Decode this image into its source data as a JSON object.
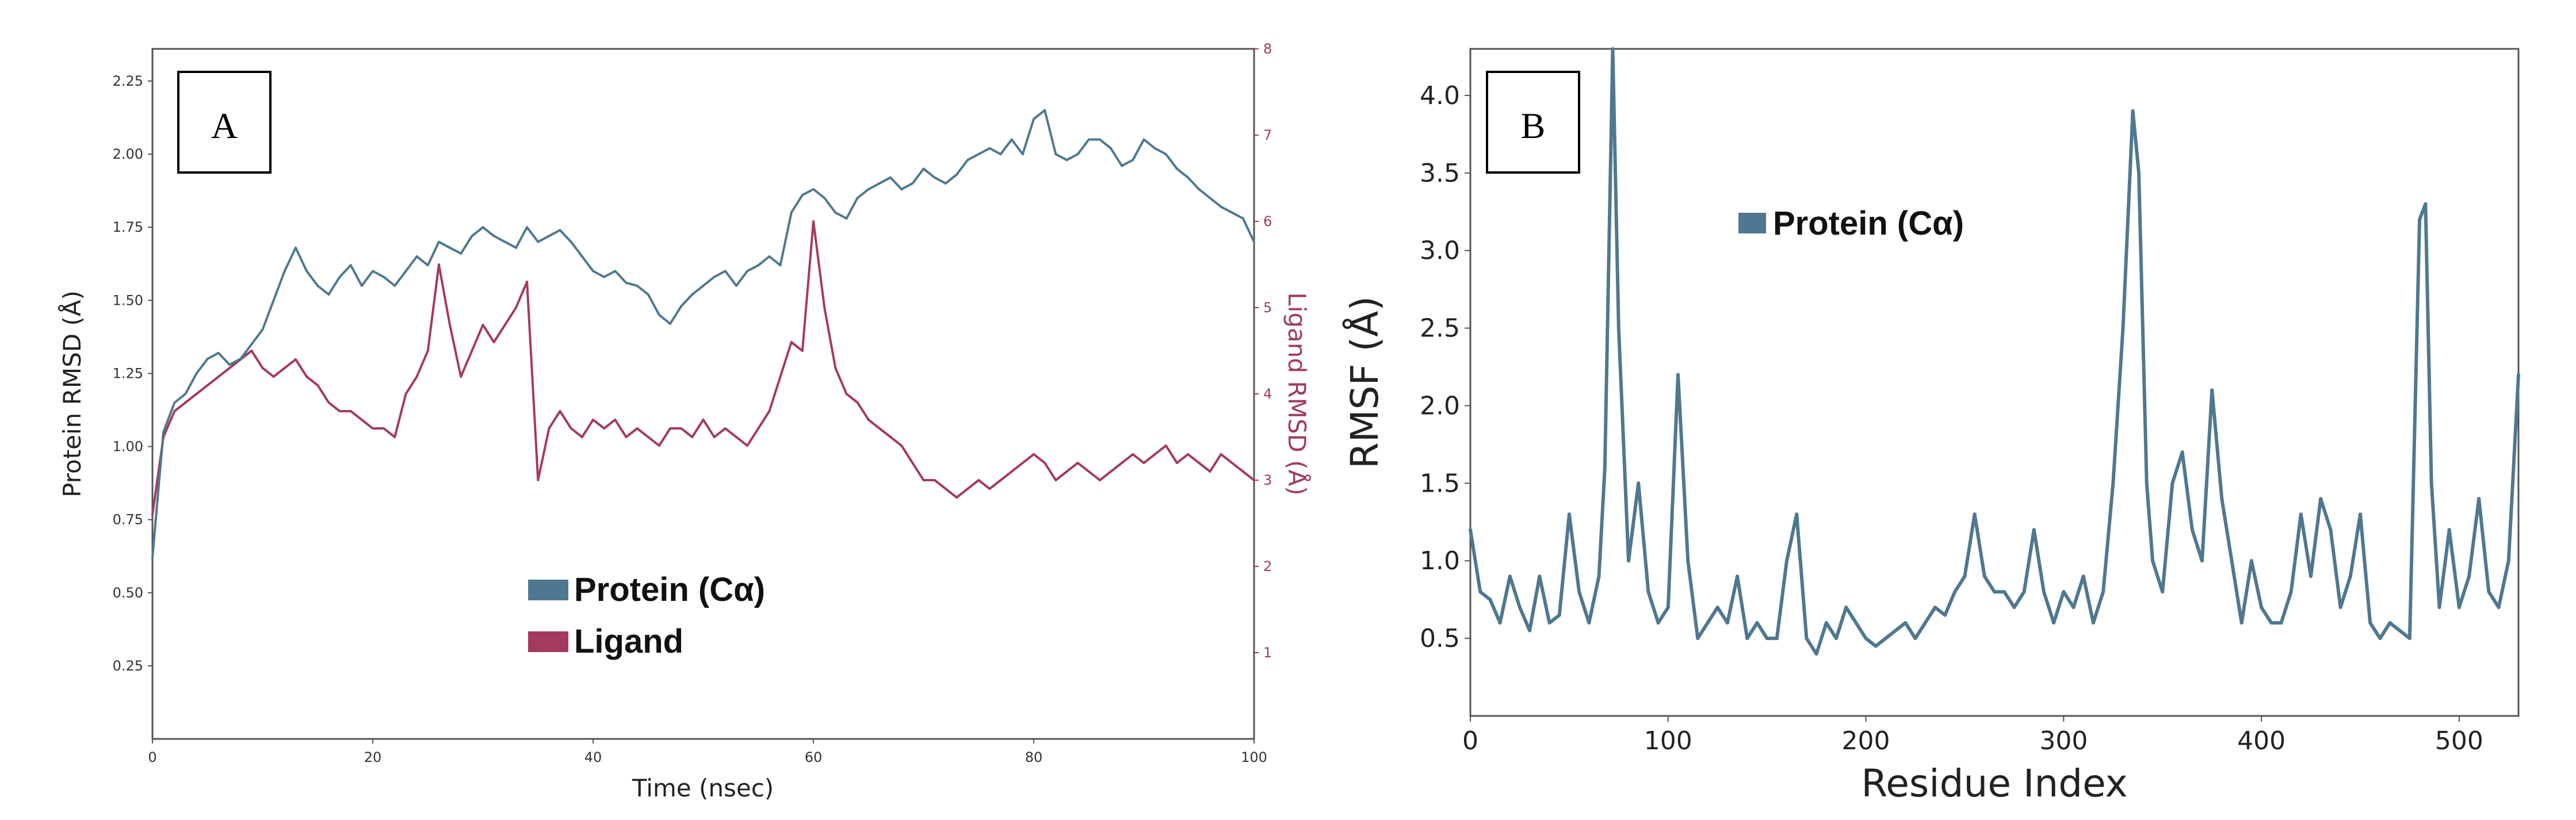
{
  "colors": {
    "protein": "#4f7890",
    "ligand": "#a53a5f"
  },
  "chart_data": [
    {
      "type": "line",
      "panel_label": "A",
      "xlabel": "Time (nsec)",
      "ylabel": "Protein RMSD (Å)",
      "y2label": "Ligand RMSD (Å)",
      "xlim": [
        0,
        100
      ],
      "ylim": [
        0,
        2.36
      ],
      "y2lim": [
        0,
        8
      ],
      "xticks": [
        "0",
        "20",
        "40",
        "60",
        "80",
        "100"
      ],
      "yticks": [
        "0.25",
        "0.50",
        "0.75",
        "1.00",
        "1.25",
        "1.50",
        "1.75",
        "2.00",
        "2.25"
      ],
      "y2ticks": [
        "1",
        "2",
        "3",
        "4",
        "5",
        "6",
        "7",
        "8"
      ],
      "legend": [
        "Protein (Cα)",
        "Ligand"
      ],
      "series": [
        {
          "name": "Protein (Cα)",
          "axis": "left",
          "x": [
            0,
            1,
            2,
            3,
            4,
            5,
            6,
            7,
            8,
            9,
            10,
            11,
            12,
            13,
            14,
            15,
            16,
            17,
            18,
            19,
            20,
            21,
            22,
            23,
            24,
            25,
            26,
            27,
            28,
            29,
            30,
            31,
            32,
            33,
            34,
            35,
            36,
            37,
            38,
            39,
            40,
            41,
            42,
            43,
            44,
            45,
            46,
            47,
            48,
            49,
            50,
            51,
            52,
            53,
            54,
            55,
            56,
            57,
            58,
            59,
            60,
            61,
            62,
            63,
            64,
            65,
            66,
            67,
            68,
            69,
            70,
            71,
            72,
            73,
            74,
            75,
            76,
            77,
            78,
            79,
            80,
            81,
            82,
            83,
            84,
            85,
            86,
            87,
            88,
            89,
            90,
            91,
            92,
            93,
            94,
            95,
            96,
            97,
            98,
            99,
            100
          ],
          "values": [
            0.62,
            1.05,
            1.15,
            1.18,
            1.25,
            1.3,
            1.32,
            1.28,
            1.3,
            1.35,
            1.4,
            1.5,
            1.6,
            1.68,
            1.6,
            1.55,
            1.52,
            1.58,
            1.62,
            1.55,
            1.6,
            1.58,
            1.55,
            1.6,
            1.65,
            1.62,
            1.7,
            1.68,
            1.66,
            1.72,
            1.75,
            1.72,
            1.7,
            1.68,
            1.75,
            1.7,
            1.72,
            1.74,
            1.7,
            1.65,
            1.6,
            1.58,
            1.6,
            1.56,
            1.55,
            1.52,
            1.45,
            1.42,
            1.48,
            1.52,
            1.55,
            1.58,
            1.6,
            1.55,
            1.6,
            1.62,
            1.65,
            1.62,
            1.8,
            1.86,
            1.88,
            1.85,
            1.8,
            1.78,
            1.85,
            1.88,
            1.9,
            1.92,
            1.88,
            1.9,
            1.95,
            1.92,
            1.9,
            1.93,
            1.98,
            2.0,
            2.02,
            2.0,
            2.05,
            2.0,
            2.12,
            2.15,
            2.0,
            1.98,
            2.0,
            2.05,
            2.05,
            2.02,
            1.96,
            1.98,
            2.05,
            2.02,
            2.0,
            1.95,
            1.92,
            1.88,
            1.85,
            1.82,
            1.8,
            1.78,
            1.7
          ]
        },
        {
          "name": "Ligand",
          "axis": "right",
          "x": [
            0,
            1,
            2,
            3,
            4,
            5,
            6,
            7,
            8,
            9,
            10,
            11,
            12,
            13,
            14,
            15,
            16,
            17,
            18,
            19,
            20,
            21,
            22,
            23,
            24,
            25,
            26,
            27,
            28,
            29,
            30,
            31,
            32,
            33,
            34,
            35,
            36,
            37,
            38,
            39,
            40,
            41,
            42,
            43,
            44,
            45,
            46,
            47,
            48,
            49,
            50,
            51,
            52,
            53,
            54,
            55,
            56,
            57,
            58,
            59,
            60,
            61,
            62,
            63,
            64,
            65,
            66,
            67,
            68,
            69,
            70,
            71,
            72,
            73,
            74,
            75,
            76,
            77,
            78,
            79,
            80,
            81,
            82,
            83,
            84,
            85,
            86,
            87,
            88,
            89,
            90,
            91,
            92,
            93,
            94,
            95,
            96,
            97,
            98,
            99,
            100
          ],
          "values": [
            2.6,
            3.5,
            3.8,
            3.9,
            4.0,
            4.1,
            4.2,
            4.3,
            4.4,
            4.5,
            4.3,
            4.2,
            4.3,
            4.4,
            4.2,
            4.1,
            3.9,
            3.8,
            3.8,
            3.7,
            3.6,
            3.6,
            3.5,
            4.0,
            4.2,
            4.5,
            5.5,
            4.8,
            4.2,
            4.5,
            4.8,
            4.6,
            4.8,
            5.0,
            5.3,
            3.0,
            3.6,
            3.8,
            3.6,
            3.5,
            3.7,
            3.6,
            3.7,
            3.5,
            3.6,
            3.5,
            3.4,
            3.6,
            3.6,
            3.5,
            3.7,
            3.5,
            3.6,
            3.5,
            3.4,
            3.6,
            3.8,
            4.2,
            4.6,
            4.5,
            6.0,
            5.0,
            4.3,
            4.0,
            3.9,
            3.7,
            3.6,
            3.5,
            3.4,
            3.2,
            3.0,
            3.0,
            2.9,
            2.8,
            2.9,
            3.0,
            2.9,
            3.0,
            3.1,
            3.2,
            3.3,
            3.2,
            3.0,
            3.1,
            3.2,
            3.1,
            3.0,
            3.1,
            3.2,
            3.3,
            3.2,
            3.3,
            3.4,
            3.2,
            3.3,
            3.2,
            3.1,
            3.3,
            3.2,
            3.1,
            3.0
          ]
        }
      ]
    },
    {
      "type": "line",
      "panel_label": "B",
      "xlabel": "Residue Index",
      "ylabel": "RMSF (Å)",
      "xlim": [
        0,
        530
      ],
      "ylim": [
        0,
        4.3
      ],
      "xticks": [
        "0",
        "100",
        "200",
        "300",
        "400",
        "500"
      ],
      "yticks": [
        "0.5",
        "1.0",
        "1.5",
        "2.0",
        "2.5",
        "3.0",
        "3.5",
        "4.0"
      ],
      "legend": [
        "Protein (Cα)"
      ],
      "series": [
        {
          "name": "Protein (Cα)",
          "x": [
            0,
            5,
            10,
            15,
            20,
            25,
            30,
            35,
            40,
            45,
            50,
            55,
            60,
            65,
            68,
            72,
            75,
            80,
            85,
            90,
            95,
            100,
            105,
            110,
            115,
            120,
            125,
            130,
            135,
            140,
            145,
            150,
            155,
            160,
            165,
            170,
            175,
            180,
            185,
            190,
            195,
            200,
            205,
            210,
            215,
            220,
            225,
            230,
            235,
            240,
            245,
            250,
            255,
            260,
            265,
            270,
            275,
            280,
            285,
            290,
            295,
            300,
            305,
            310,
            315,
            320,
            325,
            330,
            335,
            338,
            342,
            345,
            350,
            355,
            360,
            365,
            370,
            375,
            380,
            385,
            390,
            395,
            400,
            405,
            410,
            415,
            420,
            425,
            430,
            435,
            440,
            445,
            450,
            455,
            460,
            465,
            470,
            475,
            480,
            483,
            486,
            490,
            495,
            500,
            505,
            510,
            515,
            520,
            525,
            530
          ],
          "values": [
            1.2,
            0.8,
            0.75,
            0.6,
            0.9,
            0.7,
            0.55,
            0.9,
            0.6,
            0.65,
            1.3,
            0.8,
            0.6,
            0.9,
            1.6,
            4.3,
            2.5,
            1.0,
            1.5,
            0.8,
            0.6,
            0.7,
            2.2,
            1.0,
            0.5,
            0.6,
            0.7,
            0.6,
            0.9,
            0.5,
            0.6,
            0.5,
            0.5,
            1.0,
            1.3,
            0.5,
            0.4,
            0.6,
            0.5,
            0.7,
            0.6,
            0.5,
            0.45,
            0.5,
            0.55,
            0.6,
            0.5,
            0.6,
            0.7,
            0.65,
            0.8,
            0.9,
            1.3,
            0.9,
            0.8,
            0.8,
            0.7,
            0.8,
            1.2,
            0.8,
            0.6,
            0.8,
            0.7,
            0.9,
            0.6,
            0.8,
            1.5,
            2.5,
            3.9,
            3.5,
            1.5,
            1.0,
            0.8,
            1.5,
            1.7,
            1.2,
            1.0,
            2.1,
            1.4,
            1.0,
            0.6,
            1.0,
            0.7,
            0.6,
            0.6,
            0.8,
            1.3,
            0.9,
            1.4,
            1.2,
            0.7,
            0.9,
            1.3,
            0.6,
            0.5,
            0.6,
            0.55,
            0.5,
            3.2,
            3.3,
            1.5,
            0.7,
            1.2,
            0.7,
            0.9,
            1.4,
            0.8,
            0.7,
            1.0,
            2.2
          ]
        }
      ]
    }
  ]
}
